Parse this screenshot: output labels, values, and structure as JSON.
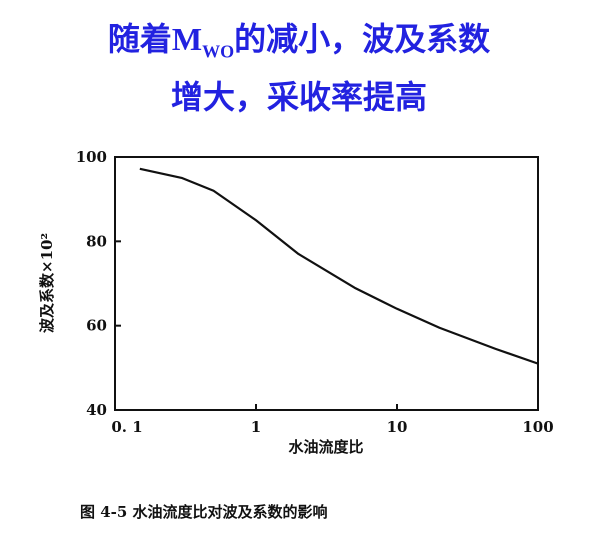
{
  "headline": {
    "line1_prefix": "随着M",
    "line1_sub": "WO",
    "line1_suffix": "的减小，波及系数",
    "line2": "增大，采收率提高"
  },
  "chart_data": {
    "type": "line",
    "x_label": "水油流度比",
    "y_label": "波及系数×10²",
    "caption": "图 4-5   水油流度比对波及系数的影响",
    "x_scale": "log",
    "x": [
      0.15,
      0.3,
      0.5,
      1,
      2,
      5,
      10,
      20,
      50,
      100
    ],
    "series": [
      {
        "color": "#111111",
        "values": [
          97.2,
          95,
          92,
          85,
          77,
          69,
          64,
          59.5,
          54.5,
          51
        ]
      }
    ],
    "xlim": [
      0.1,
      100
    ],
    "xticks": [
      {
        "value": 0.1,
        "label": "0. 1"
      },
      1,
      10,
      100
    ],
    "ylim": [
      40,
      100
    ],
    "yticks": [
      40,
      60,
      80,
      100
    ]
  }
}
